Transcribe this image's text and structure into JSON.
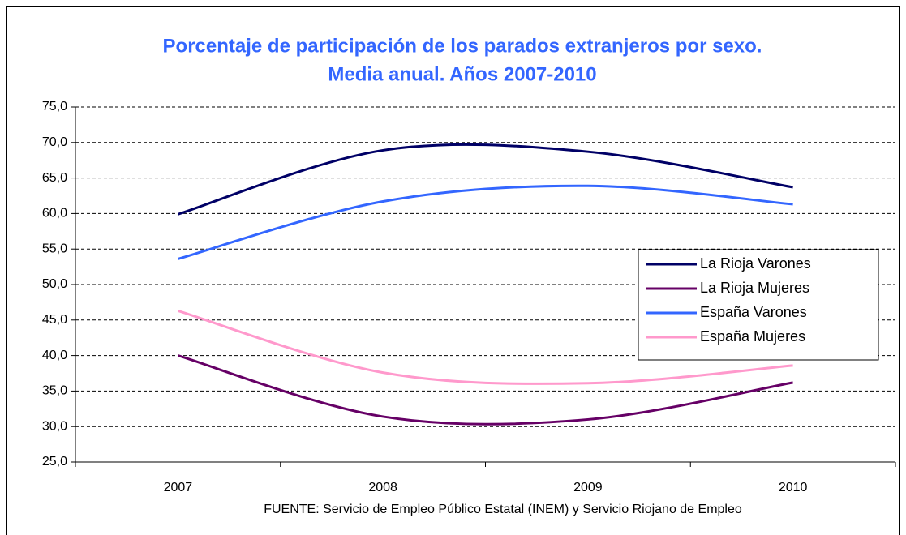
{
  "chart_data": {
    "type": "line",
    "title": [
      "Porcentaje de participación de los parados extranjeros por sexo.",
      "Media anual. Años 2007-2010"
    ],
    "categories": [
      "2007",
      "2008",
      "2009",
      "2010"
    ],
    "series": [
      {
        "name": "La Rioja Varones",
        "color": "#000066",
        "values": [
          59.9,
          68.9,
          68.7,
          63.7
        ]
      },
      {
        "name": "La Rioja Mujeres",
        "color": "#660066",
        "values": [
          40.0,
          31.4,
          31.0,
          36.2
        ]
      },
      {
        "name": "España Varones",
        "color": "#3366ff",
        "values": [
          53.6,
          61.7,
          63.9,
          61.3
        ]
      },
      {
        "name": "España Mujeres",
        "color": "#ff99cc",
        "values": [
          46.3,
          37.6,
          36.1,
          38.6
        ]
      }
    ],
    "ylim": [
      25,
      75
    ],
    "yticks": [
      {
        "value": 25,
        "label": "25,0"
      },
      {
        "value": 30,
        "label": "30,0"
      },
      {
        "value": 35,
        "label": "35,0"
      },
      {
        "value": 40,
        "label": "40,0"
      },
      {
        "value": 45,
        "label": "45,0"
      },
      {
        "value": 50,
        "label": "50,0"
      },
      {
        "value": 55,
        "label": "55,0"
      },
      {
        "value": 60,
        "label": "60,0"
      },
      {
        "value": 65,
        "label": "65,0"
      },
      {
        "value": 70,
        "label": "70,0"
      },
      {
        "value": 75,
        "label": "75,0"
      }
    ],
    "grid": true,
    "smooth": true,
    "legend": "right",
    "source": "FUENTE: Servicio de Empleo Público Estatal (INEM) y Servicio Riojano de Empleo"
  }
}
